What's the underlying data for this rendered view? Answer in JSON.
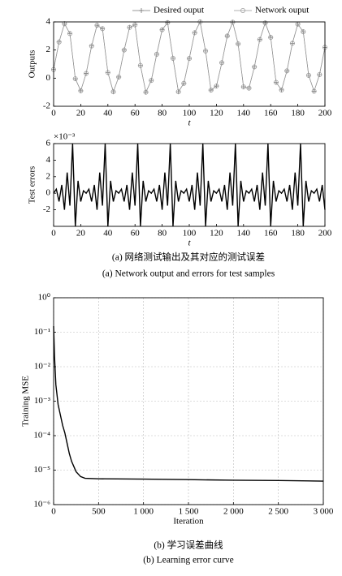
{
  "chart_data": [
    {
      "type": "line",
      "ylabel": "Outputs",
      "xlabel": "t",
      "legend": "top",
      "x": [
        0,
        4,
        8,
        12,
        16,
        20,
        24,
        28,
        32,
        36,
        40,
        44,
        48,
        52,
        56,
        60,
        64,
        68,
        72,
        76,
        80,
        84,
        88,
        92,
        96,
        100,
        104,
        108,
        112,
        116,
        120,
        124,
        128,
        132,
        136,
        140,
        144,
        148,
        152,
        156,
        160,
        164,
        168,
        172,
        176,
        180,
        184,
        188,
        192,
        196,
        200
      ],
      "series": [
        {
          "name": "Desired ouput",
          "color": "#777777",
          "marker": "plus",
          "values": [
            0.61,
            2.57,
            3.87,
            3.17,
            -0.04,
            -0.9,
            0.34,
            2.29,
            3.76,
            3.52,
            0.4,
            -0.97,
            0.08,
            2.0,
            3.61,
            3.79,
            0.9,
            -1.0,
            -0.16,
            1.7,
            3.44,
            3.95,
            1.41,
            -0.97,
            -0.37,
            1.4,
            3.23,
            4.0,
            1.93,
            -0.85,
            -0.56,
            1.1,
            3.0,
            3.98,
            2.44,
            -0.62,
            -0.71,
            0.8,
            2.75,
            3.93,
            2.9,
            -0.3,
            -0.84,
            0.52,
            2.48,
            3.84,
            3.3,
            0.2,
            -0.93,
            0.25,
            2.19
          ]
        },
        {
          "name": "Network ouput",
          "color": "#999999",
          "marker": "circle",
          "values": [
            0.61,
            2.57,
            3.87,
            3.17,
            -0.04,
            -0.9,
            0.34,
            2.29,
            3.76,
            3.52,
            0.4,
            -0.97,
            0.08,
            2.0,
            3.61,
            3.79,
            0.9,
            -1.0,
            -0.16,
            1.7,
            3.44,
            3.95,
            1.41,
            -0.97,
            -0.37,
            1.4,
            3.23,
            4.0,
            1.93,
            -0.85,
            -0.56,
            1.1,
            3.0,
            3.98,
            2.44,
            -0.62,
            -0.71,
            0.8,
            2.75,
            3.93,
            2.9,
            -0.3,
            -0.84,
            0.52,
            2.48,
            3.84,
            3.3,
            0.2,
            -0.93,
            0.25,
            2.19
          ]
        }
      ],
      "xlim": [
        0,
        200
      ],
      "xticks": [
        0,
        20,
        40,
        60,
        80,
        100,
        120,
        140,
        160,
        180,
        200
      ],
      "ylim": [
        -2,
        4
      ],
      "yticks": [
        -2,
        0,
        2,
        4
      ],
      "grid": false
    },
    {
      "type": "line",
      "ylabel": "Test errors",
      "xlabel": "t",
      "y_multiplier": "×10⁻³",
      "x": [
        0,
        2,
        4,
        6,
        8,
        10,
        12,
        14,
        16,
        18,
        20,
        22,
        24,
        26,
        28,
        30,
        32,
        34,
        36,
        38,
        40,
        42,
        44,
        46,
        48,
        50,
        52,
        54,
        56,
        58,
        60,
        62,
        64,
        66,
        68,
        70,
        72,
        74,
        76,
        78,
        80,
        82,
        84,
        86,
        88,
        90,
        92,
        94,
        96,
        98,
        100,
        102,
        104,
        106,
        108,
        110,
        112,
        114,
        116,
        118,
        120,
        122,
        124,
        126,
        128,
        130,
        132,
        134,
        136,
        138,
        140,
        142,
        144,
        146,
        148,
        150,
        152,
        154,
        156,
        158,
        160,
        162,
        164,
        166,
        168,
        170,
        172,
        174,
        176,
        178,
        180,
        182,
        184,
        186,
        188,
        190,
        192,
        194,
        196,
        198,
        200
      ],
      "series": [
        {
          "color": "#000000",
          "values": [
            0,
            0.5,
            -1,
            1,
            -2,
            2.5,
            -1.5,
            6,
            -4,
            1.5,
            -1,
            0.3,
            0,
            0.5,
            -1,
            1,
            -2,
            2.5,
            -1.5,
            6,
            -4,
            1.5,
            -1,
            0.3,
            0,
            0.5,
            -1,
            1,
            -2,
            2.5,
            -1.5,
            6,
            -4,
            1.5,
            -1,
            0.3,
            0,
            0.5,
            -1,
            1,
            -2,
            2.5,
            -1.5,
            6,
            -4,
            1.5,
            -1,
            0.3,
            0,
            0.5,
            -1,
            1,
            -2,
            2.5,
            -1.5,
            6,
            -4,
            1.5,
            -1,
            0.3,
            0,
            0.5,
            -1,
            1,
            -2,
            2.5,
            -1.5,
            6,
            -4,
            1.5,
            -1,
            0.3,
            0,
            0.5,
            -1,
            1,
            -2,
            2.5,
            -1.5,
            6,
            -4,
            1.5,
            -1,
            0.3,
            0,
            0.5,
            -1,
            1,
            -2,
            2.5,
            -1.5,
            6,
            -4,
            1.5,
            -1,
            0.3,
            0,
            0.5,
            -1,
            1,
            -2
          ]
        }
      ],
      "xlim": [
        0,
        200
      ],
      "xticks": [
        0,
        20,
        40,
        60,
        80,
        100,
        120,
        140,
        160,
        180,
        200
      ],
      "ylim": [
        -4,
        6
      ],
      "yticks": [
        -2,
        0,
        2,
        4,
        6
      ],
      "grid": false
    },
    {
      "type": "line",
      "ylabel": "Training MSE",
      "xlabel": "Iteration",
      "ylog": true,
      "x": [
        0,
        10,
        25,
        50,
        75,
        100,
        125,
        150,
        175,
        200,
        250,
        300,
        350,
        500,
        1000,
        1500,
        2000,
        2500,
        3000
      ],
      "series": [
        {
          "color": "#000000",
          "values": [
            0.15,
            0.02,
            0.003,
            0.0008,
            0.0004,
            0.0002,
            0.00012,
            6e-05,
            3e-05,
            1.8e-05,
            9e-06,
            6.5e-06,
            5.8e-06,
            5.6e-06,
            5.5e-06,
            5.3e-06,
            5.1e-06,
            5e-06,
            4.8e-06
          ]
        }
      ],
      "xlim": [
        0,
        3000
      ],
      "xticks": [
        0,
        500,
        {
          "value": 1000,
          "label": "1 000"
        },
        {
          "value": 1500,
          "label": "1 500"
        },
        {
          "value": 2000,
          "label": "2 000"
        },
        {
          "value": 2500,
          "label": "2 500"
        },
        {
          "value": 3000,
          "label": "3 000"
        }
      ],
      "ylim": [
        1e-06,
        1
      ],
      "yticks": [
        {
          "value": 1e-06,
          "label": "10⁻⁶"
        },
        {
          "value": 1e-05,
          "label": "10⁻⁵"
        },
        {
          "value": 0.0001,
          "label": "10⁻⁴"
        },
        {
          "value": 0.001,
          "label": "10⁻³"
        },
        {
          "value": 0.01,
          "label": "10⁻²"
        },
        {
          "value": 0.1,
          "label": "10⁻¹"
        },
        {
          "value": 1,
          "label": "10⁰"
        }
      ],
      "grid": true
    }
  ],
  "captions": [
    "(a) 网络测试输出及其对应的测试误差",
    "(a) Network output and errors for test samples",
    "(b) 学习误差曲线",
    "(b) Learning error curve"
  ]
}
